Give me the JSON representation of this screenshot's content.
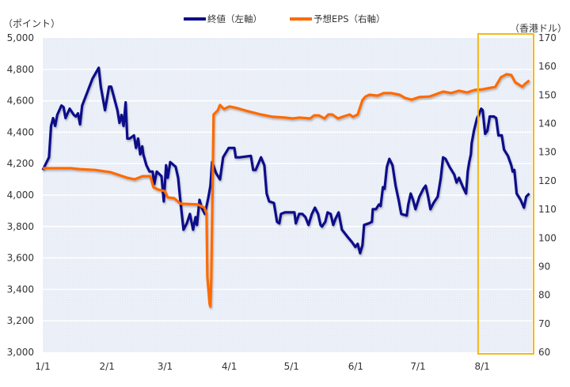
{
  "chart_data": {
    "type": "line",
    "title": "",
    "left_axis_label": "（ポイント）",
    "right_axis_label": "（香港ドル）",
    "xlabel": "",
    "x_unit": "days since 1/1",
    "xlim": [
      0,
      236
    ],
    "ylim_left": [
      3000,
      5000
    ],
    "ylim_right": [
      60,
      170
    ],
    "grid": true,
    "legend_placement": "top-center",
    "x_ticks": [
      {
        "day": 0,
        "label": "1/1"
      },
      {
        "day": 31,
        "label": "2/1"
      },
      {
        "day": 59,
        "label": "3/1"
      },
      {
        "day": 90,
        "label": "4/1"
      },
      {
        "day": 120,
        "label": "5/1"
      },
      {
        "day": 151,
        "label": "6/1"
      },
      {
        "day": 181,
        "label": "7/1"
      },
      {
        "day": 212,
        "label": "8/1"
      }
    ],
    "left_ticks": [
      "3,000",
      "3,200",
      "3,400",
      "3,600",
      "3,800",
      "4,000",
      "4,200",
      "4,400",
      "4,600",
      "4,800",
      "5,000"
    ],
    "left_tick_values": [
      3000,
      3200,
      3400,
      3600,
      3800,
      4000,
      4200,
      4400,
      4600,
      4800,
      5000
    ],
    "right_ticks": [
      "60",
      "70",
      "80",
      "90",
      "100",
      "110",
      "120",
      "130",
      "140",
      "150",
      "160",
      "170"
    ],
    "right_tick_values": [
      60,
      70,
      80,
      90,
      100,
      110,
      120,
      130,
      140,
      150,
      160,
      170
    ],
    "highlight_region": {
      "from_day": 210,
      "to_day": 236,
      "color": "#f5b817"
    },
    "series": [
      {
        "name": "終値（左軸）",
        "axis": "left",
        "color": "#0c0c8a",
        "points": [
          [
            0,
            4160
          ],
          [
            3,
            4240
          ],
          [
            4,
            4440
          ],
          [
            5,
            4490
          ],
          [
            6,
            4440
          ],
          [
            7,
            4510
          ],
          [
            9,
            4570
          ],
          [
            10,
            4560
          ],
          [
            11,
            4490
          ],
          [
            13,
            4550
          ],
          [
            15,
            4510
          ],
          [
            16,
            4500
          ],
          [
            17,
            4520
          ],
          [
            18,
            4450
          ],
          [
            19,
            4570
          ],
          [
            24,
            4740
          ],
          [
            27,
            4810
          ],
          [
            28,
            4690
          ],
          [
            30,
            4540
          ],
          [
            32,
            4690
          ],
          [
            33,
            4690
          ],
          [
            36,
            4540
          ],
          [
            37,
            4460
          ],
          [
            38,
            4510
          ],
          [
            39,
            4440
          ],
          [
            40,
            4590
          ],
          [
            40.8,
            4360
          ],
          [
            42,
            4360
          ],
          [
            44,
            4380
          ],
          [
            45,
            4300
          ],
          [
            46,
            4360
          ],
          [
            47,
            4260
          ],
          [
            48,
            4310
          ],
          [
            48.5,
            4260
          ],
          [
            50,
            4190
          ],
          [
            51.5,
            4150
          ],
          [
            53,
            4150
          ],
          [
            53.8,
            4070
          ],
          [
            55,
            4150
          ],
          [
            55.7,
            4140
          ],
          [
            57.3,
            4120
          ],
          [
            58.4,
            3960
          ],
          [
            59.5,
            4190
          ],
          [
            60.3,
            4110
          ],
          [
            61.5,
            4210
          ],
          [
            64.1,
            4180
          ],
          [
            65.3,
            4110
          ],
          [
            66.4,
            3960
          ],
          [
            67.9,
            3780
          ],
          [
            69.5,
            3820
          ],
          [
            71,
            3880
          ],
          [
            72.5,
            3780
          ],
          [
            73.7,
            3860
          ],
          [
            74.4,
            3810
          ],
          [
            75.6,
            3970
          ],
          [
            76.7,
            3920
          ],
          [
            78.2,
            3880
          ],
          [
            79.8,
            3980
          ],
          [
            80.9,
            4060
          ],
          [
            81.7,
            4210
          ],
          [
            83.6,
            4140
          ],
          [
            85.5,
            4100
          ],
          [
            87,
            4240
          ],
          [
            89.7,
            4300
          ],
          [
            92.4,
            4300
          ],
          [
            93.1,
            4240
          ],
          [
            95,
            4240
          ],
          [
            100.4,
            4250
          ],
          [
            101.5,
            4160
          ],
          [
            102.7,
            4160
          ],
          [
            105.3,
            4240
          ],
          [
            106.9,
            4190
          ],
          [
            108,
            4010
          ],
          [
            109.2,
            3960
          ],
          [
            111.5,
            3950
          ],
          [
            113,
            3830
          ],
          [
            114.1,
            3820
          ],
          [
            114.9,
            3880
          ],
          [
            116.8,
            3890
          ],
          [
            121.4,
            3890
          ],
          [
            122.1,
            3820
          ],
          [
            123.7,
            3880
          ],
          [
            125.2,
            3880
          ],
          [
            126.7,
            3860
          ],
          [
            128.2,
            3810
          ],
          [
            129.8,
            3880
          ],
          [
            131.3,
            3920
          ],
          [
            132.8,
            3880
          ],
          [
            134,
            3810
          ],
          [
            134.7,
            3800
          ],
          [
            136.3,
            3830
          ],
          [
            137.4,
            3890
          ],
          [
            138.9,
            3880
          ],
          [
            140.1,
            3810
          ],
          [
            141.2,
            3850
          ],
          [
            142.7,
            3890
          ],
          [
            144.3,
            3780
          ],
          [
            147.3,
            3730
          ],
          [
            149.2,
            3700
          ],
          [
            150.8,
            3670
          ],
          [
            151.9,
            3690
          ],
          [
            153.1,
            3630
          ],
          [
            154.2,
            3680
          ],
          [
            155,
            3810
          ],
          [
            157.3,
            3820
          ],
          [
            158.8,
            3830
          ],
          [
            159.2,
            3910
          ],
          [
            160.7,
            3910
          ],
          [
            162.2,
            3940
          ],
          [
            163,
            3930
          ],
          [
            164.1,
            4050
          ],
          [
            164.9,
            4040
          ],
          [
            166,
            4180
          ],
          [
            167.2,
            4230
          ],
          [
            168.7,
            4190
          ],
          [
            170.2,
            4060
          ],
          [
            171.8,
            3960
          ],
          [
            172.9,
            3880
          ],
          [
            175.6,
            3870
          ],
          [
            176.3,
            3940
          ],
          [
            177.5,
            4010
          ],
          [
            178.6,
            3970
          ],
          [
            179.8,
            3910
          ],
          [
            181.7,
            3990
          ],
          [
            183.6,
            4040
          ],
          [
            184.7,
            4060
          ],
          [
            185.9,
            3990
          ],
          [
            187,
            3910
          ],
          [
            188.5,
            3950
          ],
          [
            190.5,
            3990
          ],
          [
            192,
            4110
          ],
          [
            193.1,
            4240
          ],
          [
            194.3,
            4230
          ],
          [
            196.2,
            4180
          ],
          [
            198.5,
            4130
          ],
          [
            199.6,
            4080
          ],
          [
            200.8,
            4110
          ],
          [
            202.7,
            4050
          ],
          [
            204.2,
            4010
          ],
          [
            205,
            4150
          ],
          [
            205.7,
            4210
          ],
          [
            206.5,
            4260
          ],
          [
            206.9,
            4330
          ],
          [
            208,
            4410
          ],
          [
            209.5,
            4490
          ],
          [
            210.3,
            4510
          ],
          [
            211.5,
            4550
          ],
          [
            212.2,
            4540
          ],
          [
            213.4,
            4390
          ],
          [
            214.5,
            4410
          ],
          [
            215.6,
            4500
          ],
          [
            217.6,
            4500
          ],
          [
            218.7,
            4490
          ],
          [
            219.8,
            4380
          ],
          [
            221.4,
            4380
          ],
          [
            222.5,
            4290
          ],
          [
            224.4,
            4250
          ],
          [
            226,
            4190
          ],
          [
            226.7,
            4150
          ],
          [
            227.5,
            4160
          ],
          [
            228.6,
            4010
          ],
          [
            230.5,
            3970
          ],
          [
            232.1,
            3920
          ],
          [
            233.2,
            3990
          ],
          [
            234.7,
            4010
          ]
        ]
      },
      {
        "name": "予想EPS（右軸）",
        "axis": "right",
        "color": "#ff6a00",
        "points": [
          [
            0,
            124.4
          ],
          [
            9.9,
            124.4
          ],
          [
            13.7,
            124.4
          ],
          [
            17.6,
            124.1
          ],
          [
            25.2,
            123.8
          ],
          [
            32.8,
            123
          ],
          [
            40.5,
            121.1
          ],
          [
            44.3,
            120.5
          ],
          [
            48.1,
            121.6
          ],
          [
            51.9,
            121.6
          ],
          [
            53.4,
            117.8
          ],
          [
            55.7,
            116.9
          ],
          [
            58.8,
            116.4
          ],
          [
            60.3,
            114.2
          ],
          [
            63.4,
            113.9
          ],
          [
            66.4,
            112
          ],
          [
            74.8,
            111.7
          ],
          [
            77.9,
            110.6
          ],
          [
            79,
            108.6
          ],
          [
            79.4,
            86.5
          ],
          [
            80.5,
            76.9
          ],
          [
            80.9,
            76
          ],
          [
            81.3,
            86.5
          ],
          [
            82.4,
            143.2
          ],
          [
            84.4,
            144.6
          ],
          [
            85.5,
            146.5
          ],
          [
            87.4,
            145.1
          ],
          [
            90.1,
            146
          ],
          [
            93.9,
            145.4
          ],
          [
            97.7,
            144.6
          ],
          [
            105.3,
            143.2
          ],
          [
            111.1,
            142.4
          ],
          [
            116.8,
            142.1
          ],
          [
            120.6,
            141.8
          ],
          [
            123.7,
            142.1
          ],
          [
            129,
            141.8
          ],
          [
            130.9,
            142.9
          ],
          [
            133.2,
            142.9
          ],
          [
            135.9,
            141.8
          ],
          [
            137.8,
            143.2
          ],
          [
            139.7,
            143.2
          ],
          [
            142.4,
            141.8
          ],
          [
            145.4,
            142.6
          ],
          [
            148.1,
            143.2
          ],
          [
            149.6,
            142.4
          ],
          [
            151.9,
            143.2
          ],
          [
            154.2,
            148.2
          ],
          [
            155.7,
            149.5
          ],
          [
            157.6,
            150.1
          ],
          [
            161.5,
            149.8
          ],
          [
            164.5,
            150.7
          ],
          [
            167.9,
            150.7
          ],
          [
            172.1,
            150.1
          ],
          [
            174.8,
            149
          ],
          [
            177.9,
            148.4
          ],
          [
            181.7,
            149.3
          ],
          [
            186.6,
            149.5
          ],
          [
            193.1,
            151.2
          ],
          [
            197,
            150.7
          ],
          [
            200.8,
            151.5
          ],
          [
            204.6,
            150.9
          ],
          [
            208.4,
            151.8
          ],
          [
            212.2,
            152
          ],
          [
            218.3,
            152.9
          ],
          [
            221,
            156.2
          ],
          [
            223.7,
            157.3
          ],
          [
            226,
            157
          ],
          [
            227.9,
            154.5
          ],
          [
            231.3,
            152.9
          ],
          [
            232.8,
            154
          ],
          [
            234.7,
            155.1
          ]
        ]
      }
    ]
  }
}
